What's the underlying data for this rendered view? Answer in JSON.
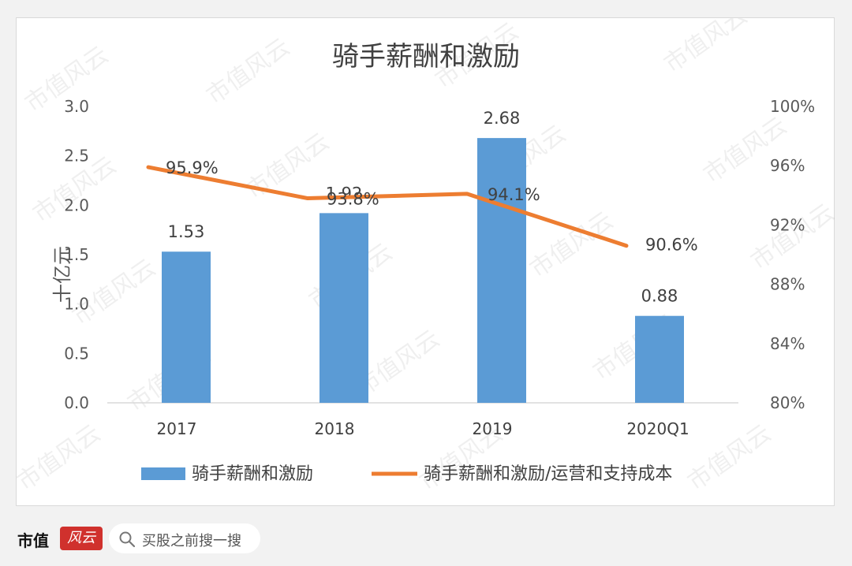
{
  "chart_data": {
    "type": "bar",
    "title": "骑手薪酬和激励",
    "ylabel": "十亿元",
    "categories": [
      "2017",
      "2018",
      "2019",
      "2020Q1"
    ],
    "ylim": [
      0,
      3.0
    ],
    "yticks": [
      "0.0",
      "0.5",
      "1.0",
      "1.5",
      "2.0",
      "2.5",
      "3.0"
    ],
    "y2lim": [
      80,
      100
    ],
    "y2ticks": [
      "80%",
      "84%",
      "88%",
      "92%",
      "96%",
      "100%"
    ],
    "series": [
      {
        "name": "骑手薪酬和激励",
        "type": "bar",
        "axis": "left",
        "color": "#5b9bd5",
        "values": [
          1.53,
          1.92,
          2.68,
          0.88
        ],
        "labels": [
          "1.53",
          "1.92",
          "2.68",
          "0.88"
        ]
      },
      {
        "name": "骑手薪酬和激励/运营和支持成本",
        "type": "line",
        "axis": "right",
        "color": "#ed7d31",
        "values": [
          95.9,
          93.8,
          94.1,
          90.6
        ],
        "labels": [
          "95.9%",
          "93.8%",
          "94.1%",
          "90.6%"
        ]
      }
    ],
    "legend": "bottom",
    "grid": false
  },
  "watermark": "市值风云",
  "footer": {
    "brand": "市值",
    "logo_text": "风云",
    "search_placeholder": "买股之前搜一搜"
  },
  "colors": {
    "bar": "#5b9bd5",
    "line": "#ed7d31",
    "brand_red": "#d0312d"
  }
}
